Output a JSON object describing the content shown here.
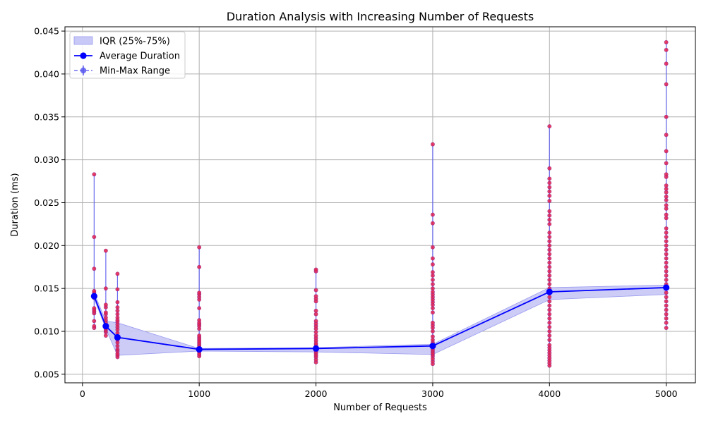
{
  "chart_data": {
    "type": "line",
    "title": "Duration Analysis with Increasing Number of Requests",
    "xlabel": "Number of Requests",
    "ylabel": "Duration (ms)",
    "xlim": [
      -150,
      5250
    ],
    "ylim": [
      0.004,
      0.0455
    ],
    "x_ticks": [
      0,
      1000,
      2000,
      3000,
      4000,
      5000
    ],
    "y_ticks": [
      0.005,
      0.01,
      0.015,
      0.02,
      0.025,
      0.03,
      0.035,
      0.04,
      0.045
    ],
    "grid": true,
    "legend_position": "top-left",
    "x": [
      100,
      200,
      300,
      1000,
      2000,
      3000,
      4000,
      5000
    ],
    "series": [
      {
        "name": "IQR (25%-75%)",
        "kind": "band",
        "color": "#0000ff",
        "lower": [
          0.0138,
          0.0103,
          0.0072,
          0.0077,
          0.0076,
          0.0073,
          0.0137,
          0.0143
        ],
        "upper": [
          0.0145,
          0.0112,
          0.011,
          0.008,
          0.0081,
          0.0085,
          0.0151,
          0.0154
        ]
      },
      {
        "name": "Average Duration",
        "kind": "line",
        "color": "#0000ff",
        "values": [
          0.0141,
          0.0106,
          0.0093,
          0.0079,
          0.008,
          0.0083,
          0.0146,
          0.0151
        ]
      },
      {
        "name": "Min-Max Range",
        "kind": "errorbar",
        "color": "#4040e0",
        "min": [
          0.0104,
          0.0095,
          0.007,
          0.0071,
          0.0064,
          0.0062,
          0.006,
          0.0104
        ],
        "max": [
          0.0283,
          0.0194,
          0.0167,
          0.0198,
          0.0172,
          0.0318,
          0.0339,
          0.0437
        ]
      }
    ],
    "samples": [
      {
        "x": 100,
        "values": [
          0.0104,
          0.0106,
          0.0112,
          0.0121,
          0.0123,
          0.0125,
          0.0127,
          0.0139,
          0.0141,
          0.0143,
          0.0145,
          0.0147,
          0.0173,
          0.021,
          0.0283
        ]
      },
      {
        "x": 200,
        "values": [
          0.0095,
          0.0099,
          0.0101,
          0.0103,
          0.0105,
          0.0107,
          0.011,
          0.0113,
          0.0116,
          0.012,
          0.0122,
          0.0128,
          0.0131,
          0.015,
          0.0194
        ]
      },
      {
        "x": 300,
        "values": [
          0.007,
          0.0072,
          0.0074,
          0.0077,
          0.0079,
          0.0083,
          0.0087,
          0.009,
          0.0094,
          0.0098,
          0.0102,
          0.0105,
          0.0108,
          0.0111,
          0.0113,
          0.0116,
          0.012,
          0.0124,
          0.0128,
          0.0134,
          0.0149,
          0.0167
        ]
      },
      {
        "x": 1000,
        "values": [
          0.0071,
          0.0073,
          0.0075,
          0.0077,
          0.0079,
          0.0081,
          0.0083,
          0.0085,
          0.0087,
          0.0089,
          0.0091,
          0.0093,
          0.0095,
          0.0103,
          0.0106,
          0.0108,
          0.011,
          0.0113,
          0.0127,
          0.0137,
          0.014,
          0.0143,
          0.0145,
          0.0175,
          0.0198
        ]
      },
      {
        "x": 2000,
        "values": [
          0.0064,
          0.0067,
          0.007,
          0.0072,
          0.0074,
          0.0076,
          0.0078,
          0.008,
          0.0082,
          0.0084,
          0.0086,
          0.0089,
          0.0092,
          0.0095,
          0.0099,
          0.0103,
          0.0106,
          0.0109,
          0.0112,
          0.012,
          0.0124,
          0.0135,
          0.0138,
          0.0141,
          0.0148,
          0.017,
          0.0172
        ]
      },
      {
        "x": 3000,
        "values": [
          0.0062,
          0.0065,
          0.0068,
          0.0071,
          0.0073,
          0.0075,
          0.0077,
          0.0079,
          0.0081,
          0.0084,
          0.0087,
          0.009,
          0.0094,
          0.01,
          0.0104,
          0.0107,
          0.011,
          0.0122,
          0.0127,
          0.0131,
          0.0134,
          0.0137,
          0.014,
          0.0143,
          0.0146,
          0.015,
          0.0155,
          0.016,
          0.0165,
          0.0169,
          0.0178,
          0.0185,
          0.0198,
          0.0226,
          0.0236,
          0.0318
        ]
      },
      {
        "x": 4000,
        "values": [
          0.006,
          0.0063,
          0.0066,
          0.0069,
          0.0072,
          0.0075,
          0.0078,
          0.0081,
          0.0084,
          0.009,
          0.0095,
          0.01,
          0.0105,
          0.011,
          0.0115,
          0.012,
          0.0125,
          0.013,
          0.0135,
          0.014,
          0.0145,
          0.015,
          0.0155,
          0.016,
          0.0165,
          0.017,
          0.0175,
          0.018,
          0.0185,
          0.019,
          0.0195,
          0.02,
          0.0205,
          0.021,
          0.0215,
          0.0225,
          0.023,
          0.0235,
          0.024,
          0.0252,
          0.0258,
          0.0263,
          0.0268,
          0.0273,
          0.0278,
          0.029,
          0.0339
        ]
      },
      {
        "x": 5000,
        "values": [
          0.0104,
          0.011,
          0.0115,
          0.012,
          0.0125,
          0.013,
          0.0135,
          0.014,
          0.0145,
          0.015,
          0.0155,
          0.016,
          0.0165,
          0.017,
          0.0175,
          0.018,
          0.0185,
          0.019,
          0.0195,
          0.02,
          0.0205,
          0.021,
          0.0215,
          0.022,
          0.0232,
          0.0236,
          0.0243,
          0.0247,
          0.0253,
          0.0257,
          0.0262,
          0.0266,
          0.027,
          0.028,
          0.0283,
          0.0296,
          0.031,
          0.0329,
          0.035,
          0.0388,
          0.0412,
          0.0428,
          0.0437
        ]
      }
    ],
    "colors": {
      "band_fill": "#c9c9f7",
      "line": "#0000ff",
      "errorbar": "#5a5aee",
      "sample_fill": "#e8204a",
      "sample_edge": "#9b2b8c",
      "grid": "#b0b0b0"
    }
  }
}
